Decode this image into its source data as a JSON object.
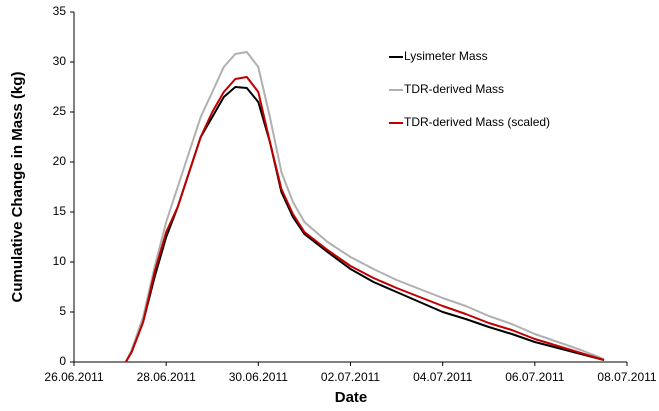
{
  "chart_data": {
    "type": "line",
    "x_label": "Date",
    "y_label": "Cumulative Change in Mass (kg)",
    "x": [
      "27.06.2011 03:00",
      "27.06.2011 06:00",
      "27.06.2011 12:00",
      "27.06.2011 18:00",
      "28.06.2011 00:00",
      "28.06.2011 06:00",
      "28.06.2011 12:00",
      "28.06.2011 18:00",
      "29.06.2011 00:00",
      "29.06.2011 06:00",
      "29.06.2011 12:00",
      "29.06.2011 18:00",
      "30.06.2011 00:00",
      "30.06.2011 06:00",
      "30.06.2011 12:00",
      "30.06.2011 18:00",
      "01.07.2011 00:00",
      "01.07.2011 12:00",
      "02.07.2011 00:00",
      "02.07.2011 12:00",
      "03.07.2011 00:00",
      "03.07.2011 12:00",
      "04.07.2011 00:00",
      "04.07.2011 12:00",
      "05.07.2011 00:00",
      "05.07.2011 12:00",
      "06.07.2011 00:00",
      "06.07.2011 12:00",
      "07.07.2011 00:00",
      "07.07.2011 12:00"
    ],
    "series": [
      {
        "name": "Lysimeter Mass",
        "color": "#000000",
        "values": [
          0,
          1,
          4,
          8.5,
          12.5,
          15.5,
          19,
          22.5,
          24.5,
          26.5,
          27.5,
          27.4,
          26,
          22,
          17,
          14.5,
          12.8,
          11,
          9.3,
          8,
          7,
          6,
          5,
          4.3,
          3.5,
          2.8,
          2,
          1.4,
          0.8,
          0.2
        ]
      },
      {
        "name": "TDR-derived Mass",
        "color": "#b0b0b0",
        "values": [
          0,
          1.2,
          4.5,
          9.5,
          14,
          17.5,
          21,
          24.5,
          27,
          29.5,
          30.8,
          31,
          29.5,
          24.5,
          19,
          16,
          14,
          12,
          10.5,
          9.3,
          8.2,
          7.3,
          6.4,
          5.6,
          4.6,
          3.8,
          2.8,
          2,
          1.2,
          0.3
        ]
      },
      {
        "name": "TDR-derived Mass (scaled)",
        "color": "#c00000",
        "values": [
          0,
          1,
          4,
          9,
          13,
          15.5,
          19,
          22.5,
          25,
          27,
          28.3,
          28.5,
          27,
          22,
          17.3,
          14.8,
          13,
          11.2,
          9.6,
          8.4,
          7.4,
          6.5,
          5.6,
          4.8,
          3.9,
          3.2,
          2.3,
          1.6,
          0.9,
          0.2
        ]
      }
    ],
    "xlim": [
      "26.06.2011",
      "08.07.2011"
    ],
    "xticks": [
      "26.06.2011",
      "28.06.2011",
      "30.06.2011",
      "02.07.2011",
      "04.07.2011",
      "06.07.2011",
      "08.07.2011"
    ],
    "ylim": [
      0,
      35
    ],
    "yticks": [
      0,
      5,
      10,
      15,
      20,
      25,
      30,
      35
    ],
    "legend": "top-right"
  }
}
